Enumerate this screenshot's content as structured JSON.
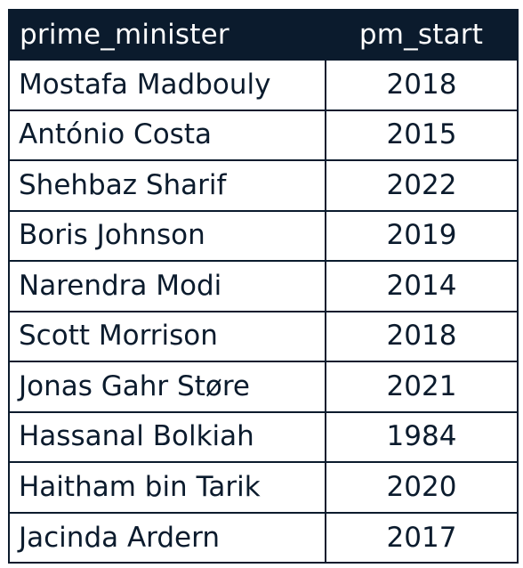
{
  "table": {
    "headers": [
      "prime_minister",
      "pm_start"
    ],
    "rows": [
      [
        "Mostafa Madbouly",
        "2018"
      ],
      [
        "António Costa",
        "2015"
      ],
      [
        "Shehbaz Sharif",
        "2022"
      ],
      [
        "Boris Johnson",
        "2019"
      ],
      [
        "Narendra Modi",
        "2014"
      ],
      [
        "Scott Morrison",
        "2018"
      ],
      [
        "Jonas Gahr Støre",
        "2021"
      ],
      [
        "Hassanal Bolkiah",
        "1984"
      ],
      [
        "Haitham bin Tarik",
        "2020"
      ],
      [
        "Jacinda Ardern",
        "2017"
      ]
    ]
  },
  "colors": {
    "header_bg": "#0b1b2d",
    "header_text": "#ffffff",
    "cell_text": "#0b1b2d",
    "border": "#0b1b2d"
  }
}
